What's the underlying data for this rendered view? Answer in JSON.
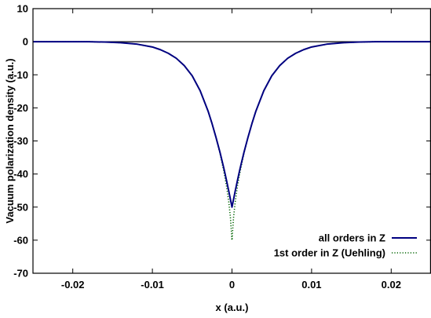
{
  "chart_data": {
    "type": "line",
    "title": "",
    "xlabel": "x (a.u.)",
    "ylabel": "Vacuum polarization density (a.u.)",
    "xlim": [
      -0.025,
      0.025
    ],
    "ylim": [
      -70,
      10
    ],
    "xticks": [
      {
        "value": -0.02,
        "label": "-0.02"
      },
      {
        "value": -0.01,
        "label": "-0.01"
      },
      {
        "value": 0,
        "label": "0"
      },
      {
        "value": 0.01,
        "label": "0.01"
      },
      {
        "value": 0.02,
        "label": "0.02"
      }
    ],
    "yticks": [
      {
        "value": 10,
        "label": "10"
      },
      {
        "value": 0,
        "label": "0"
      },
      {
        "value": -10,
        "label": "-10"
      },
      {
        "value": -20,
        "label": "-20"
      },
      {
        "value": -30,
        "label": "-30"
      },
      {
        "value": -40,
        "label": "-40"
      },
      {
        "value": -50,
        "label": "-50"
      },
      {
        "value": -60,
        "label": "-60"
      },
      {
        "value": -70,
        "label": "-70"
      }
    ],
    "grid": false,
    "legend_position": "bottom-right",
    "zero_line": true,
    "series": [
      {
        "name": "all orders in Z",
        "color": "#000080",
        "style": "solid",
        "x": [
          -0.025,
          -0.022,
          -0.02,
          -0.018,
          -0.016,
          -0.014,
          -0.012,
          -0.01,
          -0.009,
          -0.008,
          -0.007,
          -0.006,
          -0.005,
          -0.004,
          -0.003,
          -0.0025,
          -0.002,
          -0.0015,
          -0.001,
          -0.0007,
          -0.0004,
          -0.0002,
          0,
          0.0002,
          0.0004,
          0.0007,
          0.001,
          0.0015,
          0.002,
          0.0025,
          0.003,
          0.004,
          0.005,
          0.006,
          0.007,
          0.008,
          0.009,
          0.01,
          0.012,
          0.014,
          0.016,
          0.018,
          0.02,
          0.022,
          0.025
        ],
        "y": [
          0,
          0,
          0,
          0,
          -0.1,
          -0.3,
          -0.7,
          -1.6,
          -2.4,
          -3.5,
          -5.0,
          -7.2,
          -10.3,
          -14.8,
          -21.0,
          -24.8,
          -29.0,
          -33.5,
          -38.5,
          -41.8,
          -45.2,
          -47.6,
          -50,
          -47.6,
          -45.2,
          -41.8,
          -38.5,
          -33.5,
          -29.0,
          -24.8,
          -21.0,
          -14.8,
          -10.3,
          -7.2,
          -5.0,
          -3.5,
          -2.4,
          -1.6,
          -0.7,
          -0.3,
          -0.1,
          0,
          0,
          0,
          0
        ]
      },
      {
        "name": "1st order in Z (Uehling)",
        "color": "#006400",
        "style": "dotted",
        "x": [
          -0.025,
          -0.022,
          -0.02,
          -0.018,
          -0.016,
          -0.014,
          -0.012,
          -0.01,
          -0.009,
          -0.008,
          -0.007,
          -0.006,
          -0.005,
          -0.004,
          -0.003,
          -0.0025,
          -0.002,
          -0.0015,
          -0.001,
          -0.0007,
          -0.0004,
          -0.0002,
          0,
          0.0002,
          0.0004,
          0.0007,
          0.001,
          0.0015,
          0.002,
          0.0025,
          0.003,
          0.004,
          0.005,
          0.006,
          0.007,
          0.008,
          0.009,
          0.01,
          0.012,
          0.014,
          0.016,
          0.018,
          0.02,
          0.022,
          0.025
        ],
        "y": [
          0,
          0,
          0,
          0,
          -0.1,
          -0.3,
          -0.7,
          -1.6,
          -2.4,
          -3.5,
          -5.0,
          -7.2,
          -10.3,
          -14.8,
          -21.0,
          -24.8,
          -29.0,
          -33.8,
          -39.5,
          -43.5,
          -48.5,
          -53.0,
          -60,
          -53.0,
          -48.5,
          -43.5,
          -39.5,
          -33.8,
          -29.0,
          -24.8,
          -21.0,
          -14.8,
          -10.3,
          -7.2,
          -5.0,
          -3.5,
          -2.4,
          -1.6,
          -0.7,
          -0.3,
          -0.1,
          0,
          0,
          0,
          0
        ]
      }
    ]
  }
}
